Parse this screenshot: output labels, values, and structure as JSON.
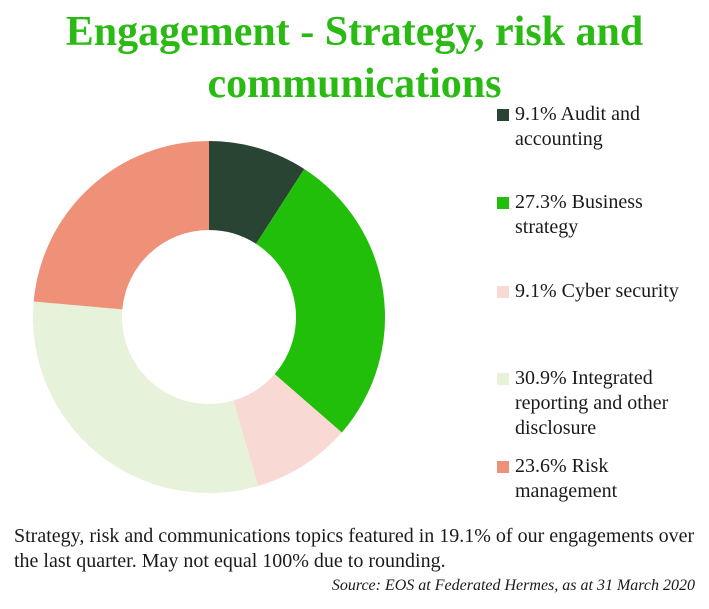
{
  "header": {
    "title_line1": "Engagement - Strategy, risk and",
    "title_line2": "communications"
  },
  "chart_data": {
    "type": "pie",
    "title": "Engagement - Strategy, risk and communications",
    "donut": true,
    "categories": [
      "Audit and accounting",
      "Business strategy",
      "Cyber security",
      "Integrated reporting and other disclosure",
      "Risk management"
    ],
    "values": [
      9.1,
      27.3,
      9.1,
      30.9,
      23.6
    ],
    "unit": "%",
    "colors": [
      "#2a4434",
      "#22bf0a",
      "#f9d9d3",
      "#e6f2d9",
      "#ef9079"
    ],
    "legend_position": "right",
    "legend_labels": [
      "9.1% Audit and accounting",
      "27.3% Business strategy",
      "9.1% Cyber security",
      "30.9% Integrated reporting and other disclosure",
      "23.6% Risk management"
    ]
  },
  "footer": {
    "caption": "Strategy, risk and communications topics featured in 19.1% of our engagements over the last quarter. May not equal 100% due to rounding.",
    "source": "Source: EOS at Federated Hermes, as at 31 March 2020"
  }
}
